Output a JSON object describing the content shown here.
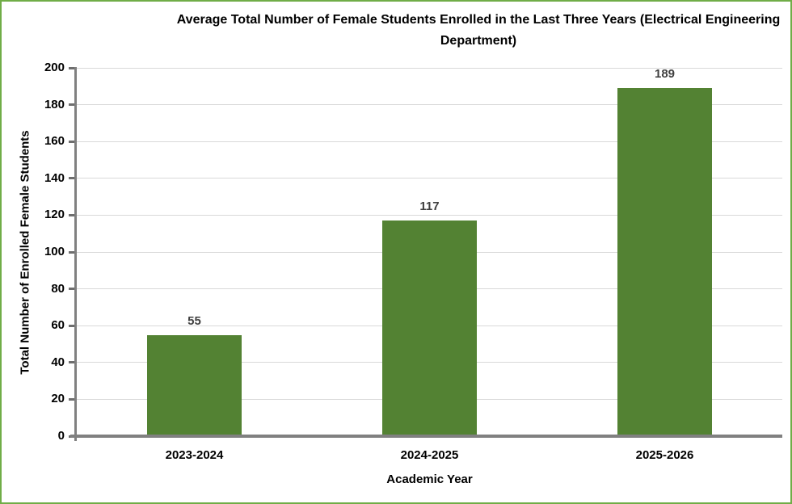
{
  "figure": {
    "background": "#FFFFFF",
    "border_color": "#70AD47"
  },
  "chart_data": {
    "type": "bar",
    "title": "Average Total Number of Female Students Enrolled in the Last Three Years (Electrical Engineering Department)",
    "xlabel": "Academic Year",
    "ylabel": "Total Number of Enrolled Female Students",
    "categories": [
      "2023-2024",
      "2024-2025",
      "2025-2026"
    ],
    "values": [
      55,
      117,
      189
    ],
    "data_labels": true,
    "ylim": [
      0,
      200
    ],
    "ytick_step": 20,
    "grid": "horizontal",
    "legend": "none",
    "colors": {
      "bar": "#538233",
      "axis_line": "#808080",
      "tick_mark": "#6E6E6E",
      "gridline": "#D9D9D9",
      "data_label": "#404040",
      "tick_label": "#000000",
      "title": "#000000"
    }
  }
}
